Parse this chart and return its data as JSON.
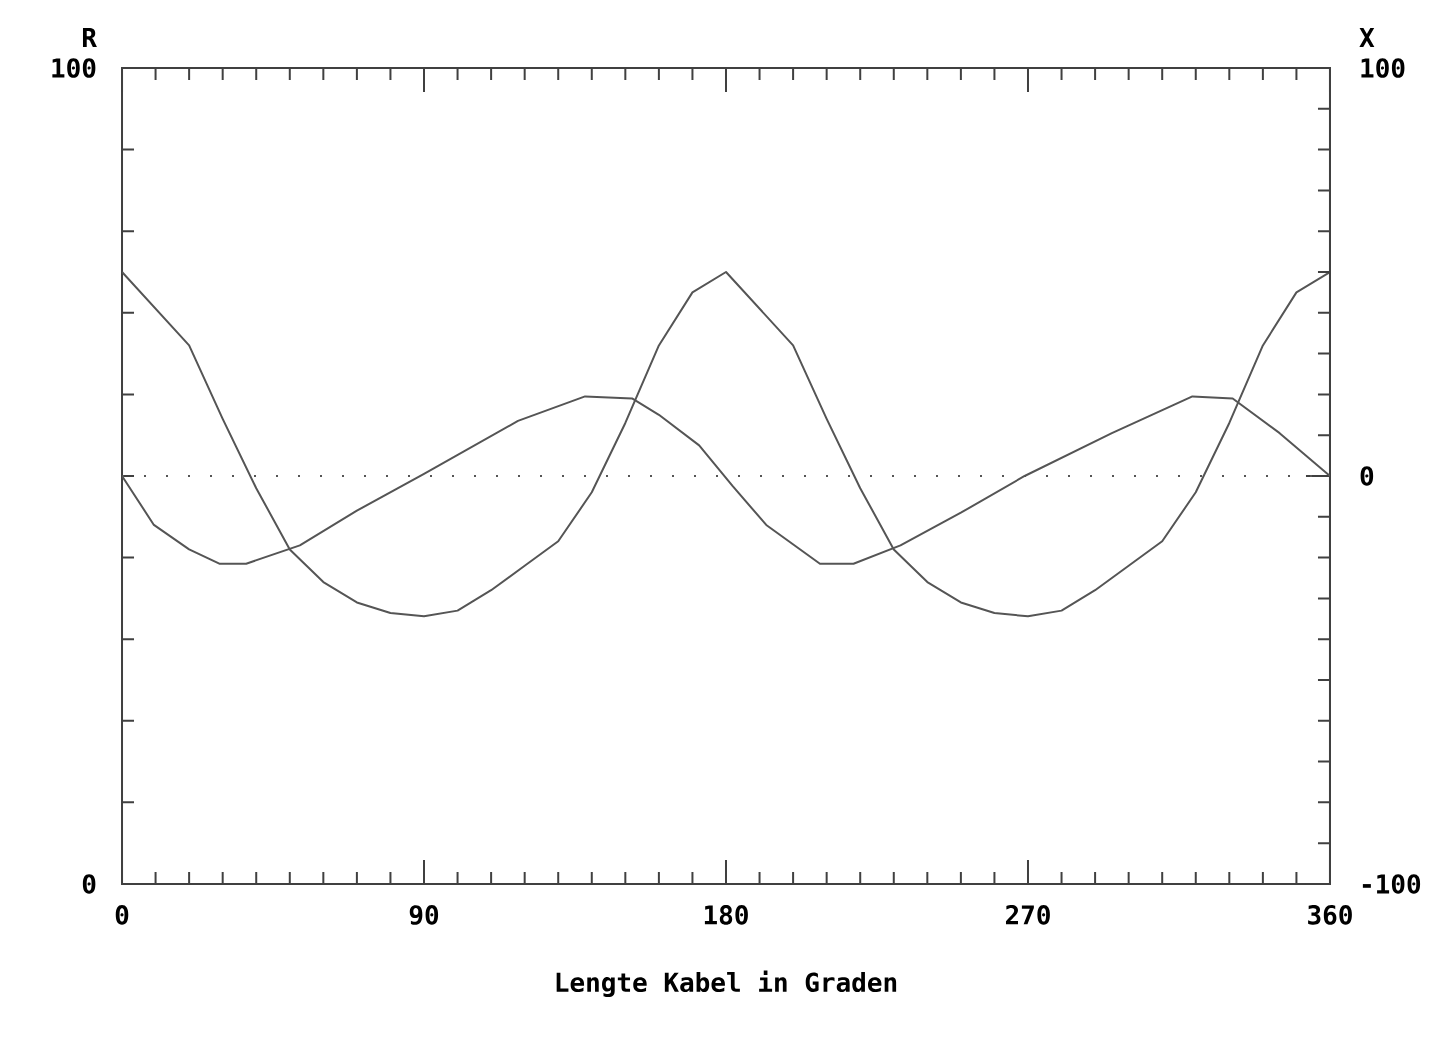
{
  "chart_data": {
    "type": "line",
    "xlabel": "Lengte Kabel in Graden",
    "ylabel": "R",
    "y2label": "X",
    "line_style": "solid",
    "xlim": [
      0,
      360
    ],
    "xticks": [
      0,
      {
        "value": 10,
        "label": null
      },
      {
        "value": 20,
        "label": null
      },
      {
        "value": 30,
        "label": null
      },
      {
        "value": 40,
        "label": null
      },
      {
        "value": 50,
        "label": null
      },
      {
        "value": 60,
        "label": null
      },
      {
        "value": 70,
        "label": null
      },
      {
        "value": 80,
        "label": null
      },
      90,
      {
        "value": 100,
        "label": null
      },
      {
        "value": 110,
        "label": null
      },
      {
        "value": 120,
        "label": null
      },
      {
        "value": 130,
        "label": null
      },
      {
        "value": 140,
        "label": null
      },
      {
        "value": 150,
        "label": null
      },
      {
        "value": 160,
        "label": null
      },
      {
        "value": 170,
        "label": null
      },
      180,
      {
        "value": 190,
        "label": null
      },
      {
        "value": 200,
        "label": null
      },
      {
        "value": 210,
        "label": null
      },
      {
        "value": 220,
        "label": null
      },
      {
        "value": 230,
        "label": null
      },
      {
        "value": 240,
        "label": null
      },
      {
        "value": 250,
        "label": null
      },
      {
        "value": 260,
        "label": null
      },
      {
        "value": 270,
        "label": "270"
      },
      {
        "value": 280,
        "label": null
      },
      {
        "value": 290,
        "label": null
      },
      {
        "value": 300,
        "label": null
      },
      {
        "value": 310,
        "label": null
      },
      {
        "value": 320,
        "label": null
      },
      {
        "value": 330,
        "label": null
      },
      {
        "value": 340,
        "label": null
      },
      {
        "value": 350,
        "label": null
      },
      360
    ],
    "ylim": [
      0,
      100
    ],
    "yticks": [
      0,
      {
        "value": 10,
        "label": null
      },
      {
        "value": 20,
        "label": null
      },
      {
        "value": 30,
        "label": null
      },
      {
        "value": 40,
        "label": null
      },
      {
        "value": 50,
        "label": null
      },
      {
        "value": 60,
        "label": null
      },
      {
        "value": 70,
        "label": null
      },
      {
        "value": 80,
        "label": null
      },
      {
        "value": 90,
        "label": null
      },
      100
    ],
    "y2lim": [
      -100,
      100
    ],
    "y2ticks": [
      -100,
      {
        "value": -90,
        "label": null
      },
      {
        "value": -80,
        "label": null
      },
      {
        "value": -70,
        "label": null
      },
      {
        "value": -60,
        "label": null
      },
      {
        "value": -50,
        "label": null
      },
      {
        "value": -40,
        "label": null
      },
      {
        "value": -30,
        "label": null
      },
      {
        "value": -20,
        "label": null
      },
      {
        "value": -10,
        "label": null
      },
      0,
      {
        "value": 10,
        "label": null
      },
      {
        "value": 20,
        "label": null
      },
      {
        "value": 30,
        "label": null
      },
      {
        "value": 40,
        "label": null
      },
      {
        "value": 50,
        "label": null
      },
      {
        "value": 60,
        "label": null
      },
      {
        "value": 70,
        "label": null
      },
      {
        "value": 80,
        "label": null
      },
      {
        "value": 90,
        "label": null
      },
      100
    ],
    "series": [
      {
        "color": "#555555",
        "x": [
          0,
          10,
          20,
          30,
          40,
          50,
          60,
          70,
          80,
          90,
          100,
          110,
          120,
          130,
          140,
          150,
          160,
          170,
          180,
          190,
          200,
          210,
          220,
          230,
          240,
          250,
          260,
          270,
          280,
          290,
          300,
          310,
          320,
          330,
          340,
          350,
          360
        ],
        "values": [
          75,
          70.5,
          66,
          57,
          48.5,
          41,
          37,
          34.5,
          33.2,
          32.8,
          33.5,
          36,
          39,
          42,
          48,
          56.5,
          66,
          72.5,
          75,
          70.5,
          66,
          57,
          48.5,
          41,
          37,
          34.5,
          33.2,
          32.8,
          33.5,
          36,
          39,
          42,
          48,
          56.5,
          66,
          72.5,
          75
        ]
      },
      {
        "color": "#555555",
        "axis": "y2",
        "x": [
          0,
          9.5,
          20,
          29,
          37,
          53,
          70,
          90,
          118,
          138,
          152,
          160,
          172,
          182,
          192,
          208,
          218,
          232,
          250,
          269,
          295,
          319,
          331,
          345,
          360
        ],
        "values": [
          0,
          -12,
          -18,
          -21.5,
          -21.5,
          -17,
          -8.5,
          0.5,
          13.5,
          19.5,
          19,
          15,
          7.5,
          -2.5,
          -12,
          -21.5,
          -21.5,
          -17,
          -9,
          0,
          10.5,
          19.5,
          19,
          10.5,
          0
        ]
      }
    ],
    "ref_lines": [
      {
        "axis": "y2",
        "value": 0,
        "line_style": "dotted",
        "color": "#555555"
      }
    ]
  }
}
